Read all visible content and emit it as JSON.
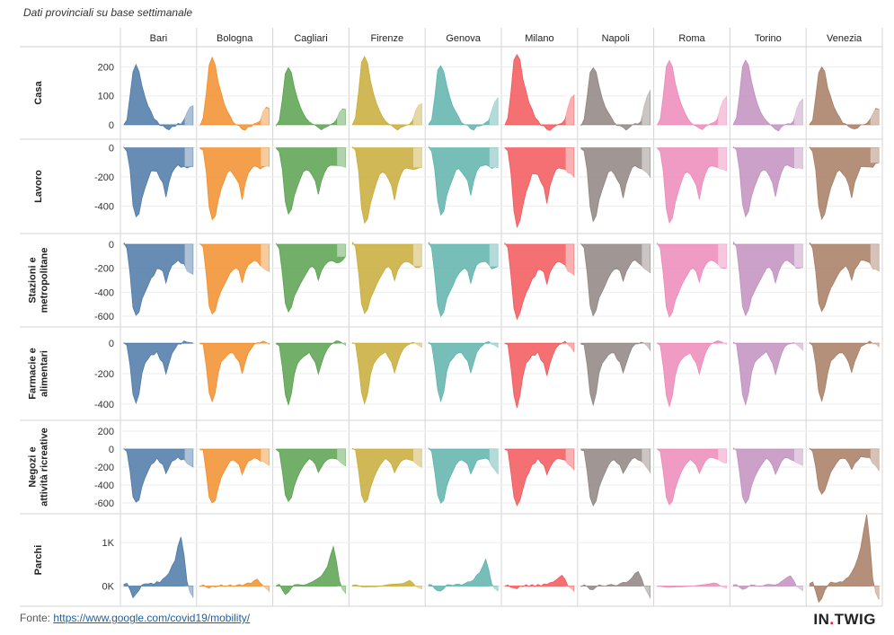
{
  "subtitle": "Dati provinciali su base settimanale",
  "footer": {
    "label": "Fonte:",
    "link_text": "https://www.google.com/covid19/mobility/"
  },
  "brand": {
    "before": "IN",
    "dot": ".",
    "after": "TWIG"
  },
  "chart_data": {
    "type": "area",
    "layout": "small-multiples",
    "columns": [
      "Bari",
      "Bologna",
      "Cagliari",
      "Firenze",
      "Genova",
      "Milano",
      "Napoli",
      "Roma",
      "Torino",
      "Venezia"
    ],
    "colors": [
      "#4e79a7",
      "#f28e2b",
      "#59a14f",
      "#c9ac38",
      "#5fb3ad",
      "#f2575a",
      "#8f8480",
      "#ec8ab9",
      "#c28fbf",
      "#a77d63"
    ],
    "rows": [
      {
        "label": "Casa",
        "ylim": [
          -25,
          245
        ],
        "ticks": [
          {
            "v": 0,
            "t": "0"
          },
          {
            "v": 100,
            "t": "100"
          },
          {
            "v": 200,
            "t": "200"
          }
        ],
        "shape": [
          [
            0,
            0
          ],
          [
            1,
            20
          ],
          [
            2,
            100
          ],
          [
            3,
            195
          ],
          [
            4,
            215
          ],
          [
            5,
            195
          ],
          [
            6,
            140
          ],
          [
            7,
            100
          ],
          [
            8,
            70
          ],
          [
            9,
            45
          ],
          [
            10,
            25
          ],
          [
            11,
            10
          ],
          [
            12,
            0
          ],
          [
            13,
            -5
          ],
          [
            14,
            -12
          ],
          [
            15,
            -18
          ],
          [
            16,
            -8
          ],
          [
            17,
            -3
          ],
          [
            18,
            2
          ],
          [
            19,
            5
          ],
          [
            20,
            15
          ],
          [
            21,
            35
          ],
          [
            22,
            55
          ],
          [
            23,
            70
          ]
        ],
        "peaks": [
          205,
          230,
          195,
          235,
          205,
          245,
          200,
          225,
          225,
          200
        ],
        "tails": [
          65,
          60,
          55,
          70,
          90,
          105,
          120,
          95,
          85,
          55
        ]
      },
      {
        "label": "Lavoro",
        "ylim": [
          -540,
          10
        ],
        "ticks": [
          {
            "v": -400,
            "t": "-400"
          },
          {
            "v": -200,
            "t": "-200"
          },
          {
            "v": 0,
            "t": "0"
          }
        ],
        "shape": [
          [
            0,
            0
          ],
          [
            1,
            -20
          ],
          [
            2,
            -150
          ],
          [
            3,
            -380
          ],
          [
            4,
            -470
          ],
          [
            5,
            -440
          ],
          [
            6,
            -340
          ],
          [
            7,
            -270
          ],
          [
            8,
            -210
          ],
          [
            9,
            -160
          ],
          [
            10,
            -150
          ],
          [
            11,
            -165
          ],
          [
            12,
            -200
          ],
          [
            13,
            -240
          ],
          [
            14,
            -330
          ],
          [
            15,
            -230
          ],
          [
            16,
            -170
          ],
          [
            17,
            -130
          ],
          [
            18,
            -120
          ],
          [
            19,
            -125
          ],
          [
            20,
            -130
          ],
          [
            21,
            -135
          ],
          [
            22,
            -130
          ],
          [
            23,
            -120
          ]
        ],
        "peaks": [
          -480,
          -500,
          -460,
          -520,
          -460,
          -540,
          -500,
          -510,
          -470,
          -490
        ],
        "tails": [
          -130,
          -120,
          -130,
          -140,
          -140,
          -195,
          -195,
          -160,
          -150,
          -100
        ]
      },
      {
        "label": "Stazioni e metropolitane",
        "ylim": [
          -630,
          30
        ],
        "ticks": [
          {
            "v": -600,
            "t": "-600"
          },
          {
            "v": -400,
            "t": "-400"
          },
          {
            "v": -200,
            "t": "-200"
          },
          {
            "v": 0,
            "t": "0"
          }
        ],
        "shape": [
          [
            0,
            10
          ],
          [
            1,
            -30
          ],
          [
            2,
            -250
          ],
          [
            3,
            -520
          ],
          [
            4,
            -600
          ],
          [
            5,
            -560
          ],
          [
            6,
            -460
          ],
          [
            7,
            -400
          ],
          [
            8,
            -340
          ],
          [
            9,
            -290
          ],
          [
            10,
            -250
          ],
          [
            11,
            -210
          ],
          [
            12,
            -200
          ],
          [
            13,
            -230
          ],
          [
            14,
            -320
          ],
          [
            15,
            -230
          ],
          [
            16,
            -180
          ],
          [
            17,
            -150
          ],
          [
            18,
            -140
          ],
          [
            19,
            -150
          ],
          [
            20,
            -170
          ],
          [
            21,
            -200
          ],
          [
            22,
            -220
          ],
          [
            23,
            -240
          ]
        ],
        "peaks": [
          -600,
          -590,
          -570,
          -580,
          -600,
          -620,
          -590,
          -600,
          -590,
          -560
        ],
        "tails": [
          -250,
          -220,
          -100,
          -190,
          -190,
          -250,
          -230,
          -200,
          -200,
          -220
        ]
      },
      {
        "label": "Farmacie e alimentari",
        "ylim": [
          -460,
          60
        ],
        "ticks": [
          {
            "v": -400,
            "t": "-400"
          },
          {
            "v": -200,
            "t": "-200"
          },
          {
            "v": 0,
            "t": "0"
          }
        ],
        "shape": [
          [
            0,
            0
          ],
          [
            1,
            -10
          ],
          [
            2,
            -150
          ],
          [
            3,
            -330
          ],
          [
            4,
            -400
          ],
          [
            5,
            -330
          ],
          [
            6,
            -200
          ],
          [
            7,
            -130
          ],
          [
            8,
            -100
          ],
          [
            9,
            -80
          ],
          [
            10,
            -70
          ],
          [
            11,
            -60
          ],
          [
            12,
            -100
          ],
          [
            13,
            -130
          ],
          [
            14,
            -200
          ],
          [
            15,
            -130
          ],
          [
            16,
            -70
          ],
          [
            17,
            -30
          ],
          [
            18,
            -10
          ],
          [
            19,
            0
          ],
          [
            20,
            10
          ],
          [
            21,
            15
          ],
          [
            22,
            10
          ],
          [
            23,
            0
          ]
        ],
        "peaks": [
          -400,
          -390,
          -410,
          -400,
          -380,
          -420,
          -400,
          -410,
          -400,
          -380
        ],
        "tails": [
          0,
          0,
          -10,
          -30,
          -30,
          -50,
          -40,
          -10,
          -50,
          -20
        ]
      },
      {
        "label": "Negozi e attività ricreative",
        "ylim": [
          -640,
          240
        ],
        "ticks": [
          {
            "v": -600,
            "t": "-600"
          },
          {
            "v": -400,
            "t": "-400"
          },
          {
            "v": -200,
            "t": "-200"
          },
          {
            "v": 0,
            "t": "0"
          },
          {
            "v": 200,
            "t": "200"
          }
        ],
        "shape": [
          [
            0,
            0
          ],
          [
            1,
            -20
          ],
          [
            2,
            -250
          ],
          [
            3,
            -520
          ],
          [
            4,
            -600
          ],
          [
            5,
            -560
          ],
          [
            6,
            -420
          ],
          [
            7,
            -320
          ],
          [
            8,
            -240
          ],
          [
            9,
            -180
          ],
          [
            10,
            -140
          ],
          [
            11,
            -110
          ],
          [
            12,
            -140
          ],
          [
            13,
            -180
          ],
          [
            14,
            -270
          ],
          [
            15,
            -200
          ],
          [
            16,
            -140
          ],
          [
            17,
            -110
          ],
          [
            18,
            -100
          ],
          [
            19,
            -110
          ],
          [
            20,
            -120
          ],
          [
            21,
            -130
          ],
          [
            22,
            -150
          ],
          [
            23,
            -180
          ]
        ],
        "peaks": [
          -600,
          -610,
          -590,
          -600,
          -600,
          -620,
          -620,
          -610,
          -600,
          -500
        ],
        "tails": [
          -200,
          -170,
          -180,
          -210,
          -280,
          -220,
          -250,
          -160,
          -190,
          -230
        ]
      },
      {
        "label": "Parchi",
        "ylim": [
          -300,
          1500
        ],
        "ticks": [
          {
            "v": 0,
            "t": "0K"
          },
          {
            "v": 1000,
            "t": "1K"
          }
        ],
        "shape": [
          [
            0,
            30
          ],
          [
            1,
            80
          ],
          [
            2,
            -100
          ],
          [
            3,
            -250
          ],
          [
            4,
            -200
          ],
          [
            5,
            -80
          ],
          [
            6,
            20
          ],
          [
            7,
            50
          ],
          [
            8,
            60
          ],
          [
            9,
            50
          ],
          [
            10,
            60
          ],
          [
            11,
            80
          ],
          [
            12,
            100
          ],
          [
            13,
            150
          ],
          [
            14,
            220
          ],
          [
            15,
            300
          ],
          [
            16,
            450
          ],
          [
            17,
            600
          ],
          [
            18,
            900
          ],
          [
            19,
            1150
          ],
          [
            20,
            700
          ],
          [
            21,
            300
          ],
          [
            22,
            50
          ],
          [
            23,
            -250
          ]
        ],
        "peaks": [
          1150,
          150,
          900,
          150,
          600,
          250,
          350,
          50,
          250,
          1650
        ],
        "tails": [
          -250,
          -100,
          -150,
          -80,
          -120,
          -100,
          -250,
          -60,
          -120,
          -300
        ]
      }
    ]
  }
}
